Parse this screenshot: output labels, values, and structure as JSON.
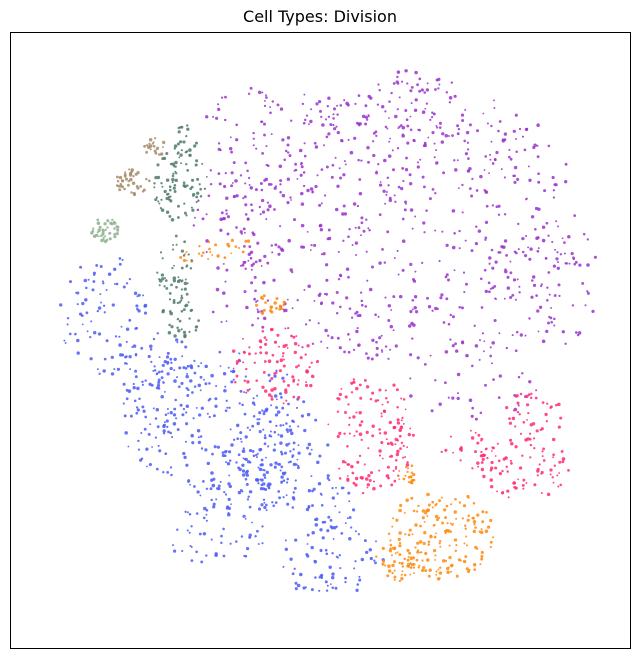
{
  "chart_data": {
    "type": "scatter",
    "title": "Cell Types: Division",
    "xlabel": "",
    "ylabel": "",
    "axes_ticks": false,
    "grid": false,
    "legend": "none",
    "clusters": [
      {
        "group": 1,
        "color": "#9932CC",
        "region": "upper-right",
        "relative_size": "largest"
      },
      {
        "group": 2,
        "color": "#4B5BF5",
        "region": "left and lower-left",
        "relative_size": "large"
      },
      {
        "group": 3,
        "color": "#FF2A77",
        "region": "center-right",
        "relative_size": "medium"
      },
      {
        "group": 4,
        "color": "#FF8A10",
        "region": "lower-right and small strips upper-left",
        "relative_size": "small"
      },
      {
        "group": 5,
        "color": "#4F7A6B",
        "region": "upper-left",
        "relative_size": "small"
      },
      {
        "group": 6,
        "color": "#A58B6A",
        "region": "far upper-left",
        "relative_size": "very small"
      },
      {
        "group": 7,
        "color": "#8FB08F",
        "region": "far upper-left",
        "relative_size": "very small"
      }
    ]
  }
}
